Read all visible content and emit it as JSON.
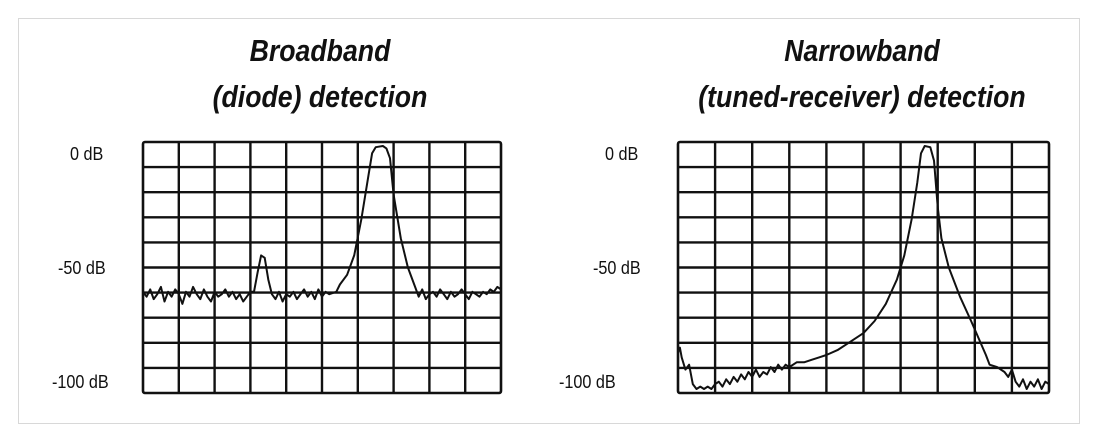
{
  "chart_data": [
    {
      "type": "line",
      "title": [
        "Broadband",
        "(diode) detection"
      ],
      "y_tick_labels": [
        "0 dB",
        "-50 dB",
        "-100 dB"
      ],
      "ylim": [
        -100,
        0
      ],
      "xlim": [
        0,
        10
      ],
      "grid": {
        "columns": 10,
        "rows": 10
      },
      "series": [
        {
          "points": [
            [
              0,
              -60
            ],
            [
              0.1,
              -62
            ],
            [
              0.2,
              -59
            ],
            [
              0.3,
              -63
            ],
            [
              0.4,
              -61
            ],
            [
              0.5,
              -58
            ],
            [
              0.6,
              -64
            ],
            [
              0.7,
              -60
            ],
            [
              0.8,
              -62
            ],
            [
              0.9,
              -59
            ],
            [
              1.0,
              -61
            ],
            [
              1.1,
              -65
            ],
            [
              1.2,
              -60
            ],
            [
              1.3,
              -62
            ],
            [
              1.4,
              -58
            ],
            [
              1.5,
              -61
            ],
            [
              1.6,
              -63
            ],
            [
              1.7,
              -59
            ],
            [
              1.8,
              -62
            ],
            [
              1.9,
              -64
            ],
            [
              2.0,
              -60
            ],
            [
              2.1,
              -62
            ],
            [
              2.2,
              -61
            ],
            [
              2.3,
              -59
            ],
            [
              2.4,
              -62
            ],
            [
              2.5,
              -60
            ],
            [
              2.6,
              -63
            ],
            [
              2.7,
              -61
            ],
            [
              2.8,
              -64
            ],
            [
              2.9,
              -62
            ],
            [
              3.0,
              -60
            ],
            [
              3.1,
              -60
            ],
            [
              3.2,
              -52
            ],
            [
              3.3,
              -45
            ],
            [
              3.4,
              -46
            ],
            [
              3.5,
              -55
            ],
            [
              3.6,
              -61
            ],
            [
              3.7,
              -63
            ],
            [
              3.8,
              -60
            ],
            [
              3.9,
              -64
            ],
            [
              4.0,
              -61
            ],
            [
              4.1,
              -62
            ],
            [
              4.2,
              -60
            ],
            [
              4.3,
              -63
            ],
            [
              4.4,
              -61
            ],
            [
              4.5,
              -59
            ],
            [
              4.6,
              -62
            ],
            [
              4.7,
              -60
            ],
            [
              4.8,
              -63
            ],
            [
              4.9,
              -59
            ],
            [
              5.0,
              -62
            ],
            [
              5.1,
              -60
            ],
            [
              5.2,
              -61
            ],
            [
              5.4,
              -60
            ],
            [
              5.5,
              -57
            ],
            [
              5.7,
              -53
            ],
            [
              5.9,
              -45
            ],
            [
              6.1,
              -30
            ],
            [
              6.3,
              -12
            ],
            [
              6.4,
              -3
            ],
            [
              6.5,
              -0.5
            ],
            [
              6.7,
              0
            ],
            [
              6.8,
              -1
            ],
            [
              6.9,
              -5
            ],
            [
              7.0,
              -20
            ],
            [
              7.2,
              -38
            ],
            [
              7.4,
              -50
            ],
            [
              7.6,
              -58
            ],
            [
              7.7,
              -62
            ],
            [
              7.8,
              -59
            ],
            [
              7.9,
              -63
            ],
            [
              8.0,
              -61
            ],
            [
              8.1,
              -60
            ],
            [
              8.2,
              -62
            ],
            [
              8.3,
              -59
            ],
            [
              8.4,
              -61
            ],
            [
              8.5,
              -63
            ],
            [
              8.6,
              -60
            ],
            [
              8.7,
              -62
            ],
            [
              8.8,
              -61
            ],
            [
              8.9,
              -59
            ],
            [
              9.0,
              -61
            ],
            [
              9.1,
              -63
            ],
            [
              9.2,
              -60
            ],
            [
              9.3,
              -61
            ],
            [
              9.4,
              -62
            ],
            [
              9.5,
              -60
            ],
            [
              9.6,
              -61
            ],
            [
              9.7,
              -59
            ],
            [
              9.8,
              -60
            ],
            [
              9.9,
              -58
            ],
            [
              10,
              -59
            ]
          ]
        }
      ]
    },
    {
      "type": "line",
      "title": [
        "Narrowband",
        "(tuned-receiver) detection"
      ],
      "y_tick_labels": [
        "0 dB",
        "-50 dB",
        "-100 dB"
      ],
      "ylim": [
        -100,
        0
      ],
      "xlim": [
        0,
        10
      ],
      "grid": {
        "columns": 10,
        "rows": 10
      },
      "series": [
        {
          "points": [
            [
              0,
              -85
            ],
            [
              0.05,
              -83
            ],
            [
              0.1,
              -87
            ],
            [
              0.2,
              -92
            ],
            [
              0.3,
              -90
            ],
            [
              0.4,
              -98
            ],
            [
              0.5,
              -100
            ],
            [
              0.6,
              -99
            ],
            [
              0.7,
              -100
            ],
            [
              0.8,
              -99
            ],
            [
              0.9,
              -100
            ],
            [
              1.0,
              -98
            ],
            [
              1.1,
              -97
            ],
            [
              1.2,
              -99
            ],
            [
              1.3,
              -96
            ],
            [
              1.4,
              -98
            ],
            [
              1.5,
              -95
            ],
            [
              1.6,
              -97
            ],
            [
              1.7,
              -94
            ],
            [
              1.8,
              -96
            ],
            [
              1.9,
              -93
            ],
            [
              2.0,
              -95
            ],
            [
              2.1,
              -92
            ],
            [
              2.2,
              -95
            ],
            [
              2.3,
              -93
            ],
            [
              2.4,
              -94
            ],
            [
              2.5,
              -91
            ],
            [
              2.6,
              -93
            ],
            [
              2.7,
              -90
            ],
            [
              2.8,
              -92
            ],
            [
              2.9,
              -90
            ],
            [
              3.0,
              -91
            ],
            [
              3.2,
              -89
            ],
            [
              3.4,
              -89
            ],
            [
              3.6,
              -88
            ],
            [
              3.8,
              -87
            ],
            [
              4.0,
              -86
            ],
            [
              4.3,
              -84
            ],
            [
              4.6,
              -81
            ],
            [
              5.0,
              -77
            ],
            [
              5.3,
              -72
            ],
            [
              5.6,
              -65
            ],
            [
              5.9,
              -55
            ],
            [
              6.1,
              -45
            ],
            [
              6.3,
              -30
            ],
            [
              6.45,
              -15
            ],
            [
              6.55,
              -3
            ],
            [
              6.65,
              0
            ],
            [
              6.8,
              -0.5
            ],
            [
              6.9,
              -6
            ],
            [
              7.0,
              -25
            ],
            [
              7.1,
              -38
            ],
            [
              7.3,
              -50
            ],
            [
              7.6,
              -62
            ],
            [
              7.9,
              -72
            ],
            [
              8.1,
              -79
            ],
            [
              8.3,
              -86
            ],
            [
              8.4,
              -90
            ],
            [
              8.6,
              -91
            ],
            [
              8.8,
              -93
            ],
            [
              8.9,
              -95
            ],
            [
              9.0,
              -92
            ],
            [
              9.1,
              -97
            ],
            [
              9.2,
              -99
            ],
            [
              9.3,
              -96
            ],
            [
              9.4,
              -100
            ],
            [
              9.5,
              -97
            ],
            [
              9.6,
              -99
            ],
            [
              9.7,
              -96
            ],
            [
              9.8,
              -100
            ],
            [
              9.9,
              -97
            ],
            [
              10,
              -98
            ]
          ]
        }
      ]
    }
  ]
}
